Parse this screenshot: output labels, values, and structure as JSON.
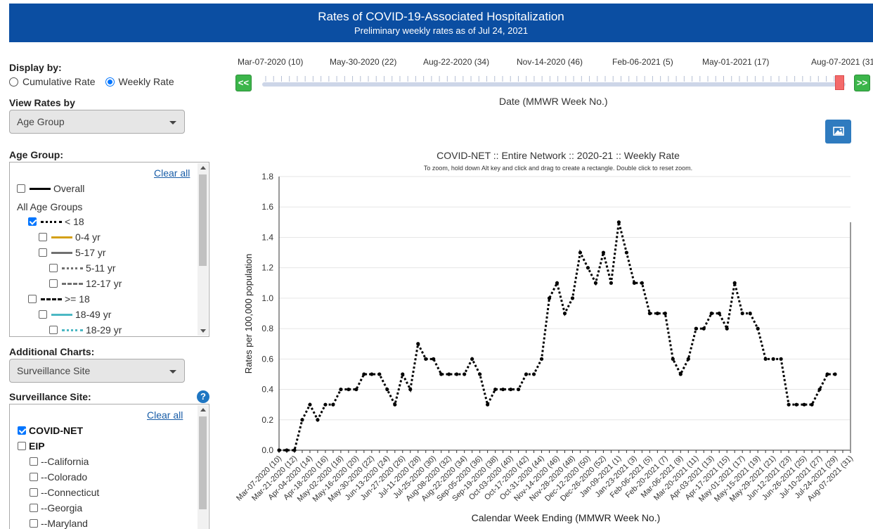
{
  "banner": {
    "title": "Rates of COVID-19-Associated Hospitalization",
    "subtitle": "Preliminary weekly rates as of Jul 24, 2021"
  },
  "sidebar": {
    "display_by": {
      "label": "Display by:",
      "options": [
        "Cumulative Rate",
        "Weekly Rate"
      ],
      "selected": "Weekly Rate"
    },
    "view_rates_by": {
      "label": "View Rates by",
      "value": "Age Group"
    },
    "age_group": {
      "label": "Age Group:",
      "clear_all": "Clear all",
      "items": [
        {
          "label": "Overall",
          "checked": false,
          "style": "solid",
          "color": "#000000"
        },
        {
          "label": "All Age Groups",
          "header": true
        },
        {
          "label": "< 18",
          "checked": true,
          "style": "dotted",
          "color": "#000000"
        },
        {
          "label": "0-4 yr",
          "checked": false,
          "style": "solid",
          "color": "#d4a017"
        },
        {
          "label": "5-17 yr",
          "checked": false,
          "style": "solid",
          "color": "#707070"
        },
        {
          "label": "5-11 yr",
          "checked": false,
          "style": "dotted",
          "color": "#707070"
        },
        {
          "label": "12-17 yr",
          "checked": false,
          "style": "dashdot",
          "color": "#707070"
        },
        {
          "label": ">= 18",
          "checked": false,
          "style": "dashdot",
          "color": "#000000"
        },
        {
          "label": "18-49 yr",
          "checked": false,
          "style": "solid",
          "color": "#4cb8c4"
        },
        {
          "label": "18-29 yr",
          "checked": false,
          "style": "dotted",
          "color": "#4cb8c4"
        }
      ]
    },
    "additional_charts": {
      "label": "Additional Charts:",
      "value": "Surveillance Site"
    },
    "surveillance_site": {
      "label": "Surveillance Site:",
      "help": "?",
      "clear_all": "Clear all",
      "items": [
        {
          "label": "COVID-NET",
          "checked": true,
          "bold": true
        },
        {
          "label": "EIP",
          "checked": false,
          "bold": true
        },
        {
          "label": "--California",
          "checked": false
        },
        {
          "label": "--Colorado",
          "checked": false
        },
        {
          "label": "--Connecticut",
          "checked": false
        },
        {
          "label": "--Georgia",
          "checked": false
        },
        {
          "label": "--Maryland",
          "checked": false
        }
      ]
    }
  },
  "slider": {
    "labels": [
      "Mar-07-2020 (10)",
      "May-30-2020 (22)",
      "Aug-22-2020 (34)",
      "Nov-14-2020 (46)",
      "Feb-06-2021 (5)",
      "May-01-2021 (17)",
      "Aug-07-2021 (31"
    ],
    "prev": "<<",
    "next": ">>",
    "title": "Date (MMWR Week No.)"
  },
  "chart_data": {
    "type": "line",
    "title": "COVID-NET :: Entire Network :: 2020-21 :: Weekly Rate",
    "subtitle": "To zoom, hold down Alt key and click and drag to create a rectangle. Double click to reset zoom.",
    "xlabel": "Calendar Week Ending (MMWR Week No.)",
    "ylabel": "Rates per 100,000 population",
    "ylim": [
      0,
      1.8
    ],
    "yticks": [
      "0.0",
      "0.2",
      "0.4",
      "0.6",
      "0.8",
      "1.0",
      "1.2",
      "1.4",
      "1.6",
      "1.8"
    ],
    "grid": true,
    "x_tick_labels": [
      "Mar-07-2020 (10)",
      "Mar-21-2020 (12)",
      "Apr-04-2020 (14)",
      "Apr-18-2020 (16)",
      "May-02-2020 (18)",
      "May-16-2020 (20)",
      "May-30-2020 (22)",
      "Jun-13-2020 (24)",
      "Jun-27-2020 (26)",
      "Jul-11-2020 (28)",
      "Jul-25-2020 (30)",
      "Aug-08-2020 (32)",
      "Aug-22-2020 (34)",
      "Sep-05-2020 (36)",
      "Sep-19-2020 (38)",
      "Oct-03-2020 (40)",
      "Oct-17-2020 (42)",
      "Oct-31-2020 (44)",
      "Nov-14-2020 (46)",
      "Nov-28-2020 (48)",
      "Dec-12-2020 (50)",
      "Dec-26-2020 (52)",
      "Jan-09-2021 (1)",
      "Jan-23-2021 (3)",
      "Feb-06-2021 (5)",
      "Feb-20-2021 (7)",
      "Mar-06-2021 (9)",
      "Mar-20-2021 (11)",
      "Apr-03-2021 (13)",
      "Apr-17-2021 (15)",
      "May-01-2021 (17)",
      "May-15-2021 (19)",
      "May-29-2021 (21)",
      "Jun-12-2021 (23)",
      "Jun-26-2021 (25)",
      "Jul-10-2021 (27)",
      "Jul-24-2021 (29)",
      "Aug-07-2021 (31)"
    ],
    "series": [
      {
        "style": "dotted",
        "color": "#000000",
        "values": [
          0.0,
          0.0,
          0.0,
          0.2,
          0.3,
          0.2,
          0.3,
          0.3,
          0.4,
          0.4,
          0.4,
          0.5,
          0.5,
          0.5,
          0.4,
          0.3,
          0.5,
          0.4,
          0.7,
          0.6,
          0.6,
          0.5,
          0.5,
          0.5,
          0.5,
          0.6,
          0.5,
          0.3,
          0.4,
          0.4,
          0.4,
          0.4,
          0.5,
          0.5,
          0.6,
          1.0,
          1.1,
          0.9,
          1.0,
          1.3,
          1.2,
          1.1,
          1.3,
          1.1,
          1.5,
          1.3,
          1.1,
          1.1,
          0.9,
          0.9,
          0.9,
          0.6,
          0.5,
          0.6,
          0.8,
          0.8,
          0.9,
          0.9,
          0.8,
          1.1,
          0.9,
          0.9,
          0.8,
          0.6,
          0.6,
          0.6,
          0.3,
          0.3,
          0.3,
          0.3,
          0.4,
          0.5,
          0.5
        ]
      }
    ]
  }
}
